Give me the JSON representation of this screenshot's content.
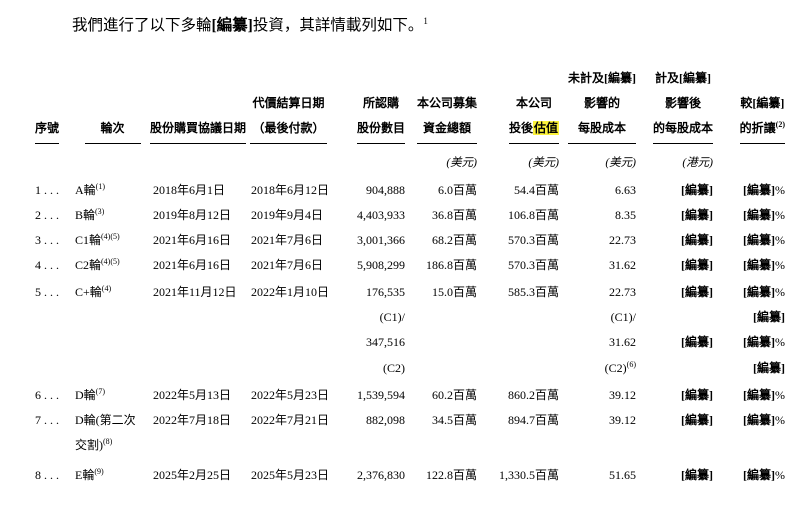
{
  "title": {
    "text_before": "我們進行了以下多輪",
    "redacted": "[編纂]",
    "text_after": "投資，其詳情載列如下。",
    "footnote": "1"
  },
  "table": {
    "header": {
      "columns": [
        {
          "key": "seq-no",
          "align": "l",
          "lines": [
            "序號"
          ],
          "unit": ""
        },
        {
          "key": "round",
          "align": "c",
          "lines": [
            "輪次"
          ],
          "unit": ""
        },
        {
          "key": "spa-date",
          "align": "l",
          "lines": [
            "股份購買協議日期"
          ],
          "unit": ""
        },
        {
          "key": "settlement-date",
          "align": "c",
          "lines": [
            "代價結算日期",
            "（最後付款）"
          ],
          "unit": ""
        },
        {
          "key": "shares-subscribed",
          "align": "r",
          "lines": [
            "所認購",
            "股份數目"
          ],
          "unit": ""
        },
        {
          "key": "funds-raised",
          "align": "r",
          "lines": [
            "本公司募集",
            "資金總額"
          ],
          "unit": "(美元)"
        },
        {
          "key": "post-money-valuation",
          "align": "r",
          "lines": [
            "本公司",
            "投後@hl{估值}"
          ],
          "unit": "(美元)"
        },
        {
          "key": "cost-per-share-pre",
          "align": "r",
          "lines": [
            "未計及[編纂]",
            "影響的",
            "每股成本"
          ],
          "unit": "(美元)"
        },
        {
          "key": "cost-per-share-post",
          "align": "r",
          "lines": [
            "計及[編纂]",
            "影響後",
            "的每股成本"
          ],
          "unit": "(港元)"
        },
        {
          "key": "discount",
          "align": "r",
          "lines": [
            "較[編纂]",
            "的折讓^{(2)}"
          ],
          "unit": ""
        }
      ]
    },
    "rows": [
      [
        "1 . . .",
        "A輪^{(1)}",
        "2018年6月1日",
        "2018年6月12日",
        "904,888",
        "6.0百萬",
        "54.4百萬",
        "6.63",
        "[編纂]",
        "[編纂]%"
      ],
      [
        "2 . . .",
        "B輪^{(3)}",
        "2019年8月12日",
        "2019年9月4日",
        "4,403,933",
        "36.8百萬",
        "106.8百萬",
        "8.35",
        "[編纂]",
        "[編纂]%"
      ],
      [
        "3 . . .",
        "C1輪^{(4)(5)}",
        "2021年6月16日",
        "2021年7月6日",
        "3,001,366",
        "68.2百萬",
        "570.3百萬",
        "22.73",
        "[編纂]",
        "[編纂]%"
      ],
      [
        "4 . . .",
        "C2輪^{(4)(5)}",
        "2021年6月16日",
        "2021年7月6日",
        "5,908,299",
        "186.8百萬",
        "570.3百萬",
        "31.62",
        "[編纂]",
        "[編纂]%"
      ],
      [
        "5 . . .",
        "C+輪^{(4)}",
        "2021年11月12日",
        "2022年1月10日",
        "176,535",
        "15.0百萬",
        "585.3百萬",
        "22.73",
        "[編纂]",
        "[編纂]%"
      ],
      [
        "",
        "",
        "",
        "",
        "(C1)/",
        "",
        "",
        "(C1)/",
        "",
        "[編纂]"
      ],
      [
        "",
        "",
        "",
        "",
        "347,516",
        "",
        "",
        "31.62",
        "[編纂]",
        "[編纂]%"
      ],
      [
        "",
        "",
        "",
        "",
        "(C2)",
        "",
        "",
        "(C2)^{(6)}",
        "",
        "[編纂]"
      ],
      [
        "6 . . .",
        "D輪^{(7)}",
        "2022年5月13日",
        "2022年5月23日",
        "1,539,594",
        "60.2百萬",
        "860.2百萬",
        "39.12",
        "[編纂]",
        "[編纂]%"
      ],
      [
        "7 . . .",
        "D輪(第二次",
        "2022年7月18日",
        "2022年7月21日",
        "882,098",
        "34.5百萬",
        "894.7百萬",
        "39.12",
        "[編纂]",
        "[編纂]%"
      ],
      [
        "",
        "交割)^{(8)}",
        "",
        "",
        "",
        "",
        "",
        "",
        "",
        ""
      ],
      [
        "8 . . .",
        "E輪^{(9)}",
        "2025年2月25日",
        "2025年5月23日",
        "2,376,830",
        "122.8百萬",
        "1,330.5百萬",
        "51.65",
        "[編纂]",
        "[編纂]%"
      ]
    ]
  },
  "colors": {
    "highlight": "#FBF23C",
    "text": "#000000",
    "background": "#FFFFFF"
  }
}
